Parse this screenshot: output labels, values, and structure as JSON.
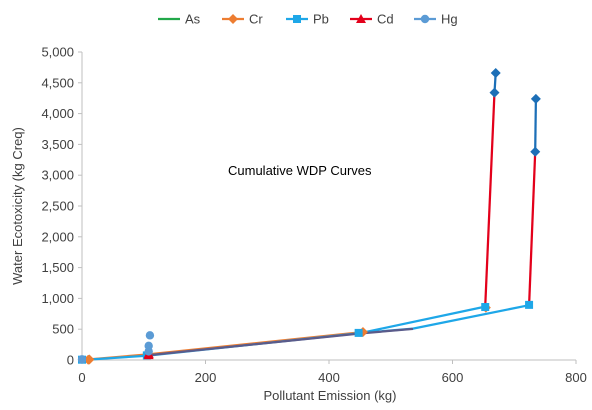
{
  "chart_data": {
    "type": "line",
    "title": "",
    "annotation": "Cumulative WDP Curves",
    "xlabel": "Pollutant Emission (kg)",
    "ylabel": "Water Ecotoxicity (kg Creq)",
    "xlim": [
      0,
      800
    ],
    "ylim": [
      0,
      5000
    ],
    "x_ticks": [
      "0",
      "200",
      "400",
      "600",
      "800"
    ],
    "y_ticks": [
      "0",
      "500",
      "1,000",
      "1,500",
      "2,000",
      "2,500",
      "3,000",
      "3,500",
      "4,000",
      "4,500",
      "5,000"
    ],
    "x_tick_values": [
      0,
      200,
      400,
      600,
      800
    ],
    "y_tick_values": [
      0,
      500,
      1000,
      1500,
      2000,
      2500,
      3000,
      3500,
      4000,
      4500,
      5000
    ],
    "legend_position": "top",
    "series": [
      {
        "name": "As",
        "color": "#22a84a",
        "marker": "dash",
        "points": [
          [
            452,
            448
          ]
        ]
      },
      {
        "name": "Cr",
        "color": "#ed7d31",
        "marker": "diamond",
        "points": [
          [
            10,
            5
          ],
          [
            12,
            8
          ],
          [
            455,
            455
          ],
          [
            654,
            850
          ]
        ]
      },
      {
        "name": "Pb",
        "color": "#1ea7e8",
        "marker": "square",
        "points": [
          [
            0,
            5
          ],
          [
            105,
            75
          ],
          [
            448,
            440
          ],
          [
            653,
            860
          ],
          [
            724,
            895
          ]
        ]
      },
      {
        "name": "Cd",
        "color": "#e3001b",
        "marker": "triangle",
        "points": [
          [
            108,
            80
          ],
          [
            108,
            100
          ]
        ]
      },
      {
        "name": "Hg",
        "color": "#5b9bd5",
        "marker": "circle",
        "points": [
          [
            0,
            10
          ],
          [
            108,
            140
          ],
          [
            108,
            230
          ],
          [
            110,
            400
          ]
        ]
      }
    ],
    "curves": [
      {
        "color": "#ed7d31",
        "points": [
          [
            0,
            0
          ],
          [
            105,
            90
          ],
          [
            452,
            452
          ]
        ]
      },
      {
        "color": "#1ea7e8",
        "points": [
          [
            0,
            0
          ],
          [
            105,
            70
          ],
          [
            452,
            438
          ],
          [
            650,
            860
          ]
        ]
      },
      {
        "color": "#1ea7e8",
        "points": [
          [
            452,
            438
          ],
          [
            536,
            510
          ],
          [
            724,
            890
          ]
        ]
      },
      {
        "color": "#5b5b8a",
        "points": [
          [
            105,
            75
          ],
          [
            452,
            432
          ],
          [
            536,
            505
          ]
        ]
      },
      {
        "color": "#e3001b",
        "points": [
          [
            653,
            860
          ],
          [
            668,
            4350
          ]
        ]
      },
      {
        "color": "#e3001b",
        "points": [
          [
            724,
            890
          ],
          [
            734,
            3380
          ]
        ]
      },
      {
        "color": "#1c6fb7",
        "points": [
          [
            668,
            4340
          ],
          [
            670,
            4660
          ]
        ]
      },
      {
        "color": "#1c6fb7",
        "points": [
          [
            734,
            3380
          ],
          [
            735,
            4240
          ]
        ]
      }
    ],
    "curve_end_markers": [
      {
        "color": "#1c6fb7",
        "points": [
          [
            668,
            4340
          ],
          [
            670,
            4660
          ]
        ]
      },
      {
        "color": "#1c6fb7",
        "points": [
          [
            734,
            3380
          ],
          [
            735,
            4240
          ]
        ]
      }
    ],
    "grid": false
  }
}
